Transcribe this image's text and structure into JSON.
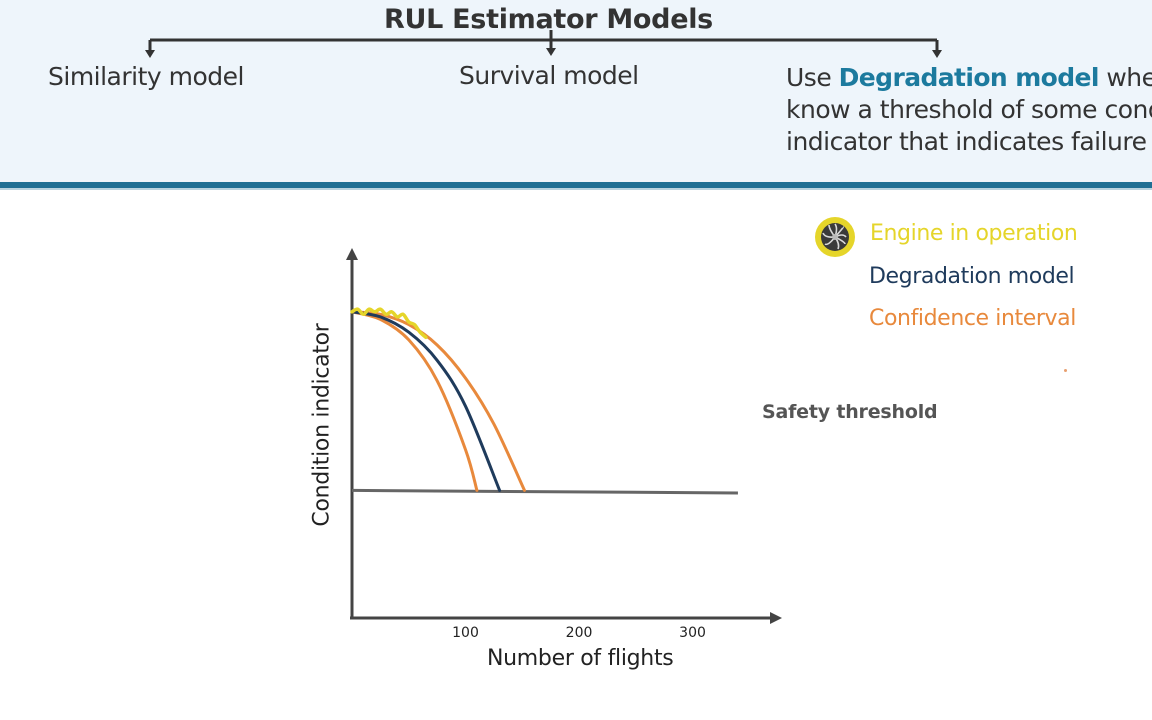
{
  "header": {
    "title": "RUL Estimator Models",
    "models": [
      {
        "label": "Similarity model"
      },
      {
        "label": "Survival model"
      }
    ],
    "degradation_description": {
      "prefix": "Use ",
      "highlight": "Degradation model",
      "suffix": " when you",
      "line2": "know a threshold of some condition",
      "line3": "indicator that indicates failure"
    }
  },
  "legend": {
    "items": [
      {
        "label": "Engine in operation",
        "color": "#e5d52a",
        "icon": "turbine-icon"
      },
      {
        "label": "Degradation model",
        "color": "#1f3b5c"
      },
      {
        "label": "Confidence interval",
        "color": "#e8893c"
      }
    ]
  },
  "colors": {
    "accent": "#1f6f94",
    "highlight": "#1c7a9e",
    "degradation": "#1f3b5c",
    "confidence": "#e8893c",
    "engine": "#e5d52a",
    "threshold": "#666666"
  },
  "chart_data": {
    "type": "line",
    "title": "",
    "xlabel": "Number of flights",
    "ylabel": "Condition indicator",
    "x_ticks": [
      {
        "value": 100,
        "label": "100"
      },
      {
        "value": 200,
        "label": "200"
      },
      {
        "value": 300,
        "label": "300"
      }
    ],
    "xlim": [
      0,
      370
    ],
    "ylim": [
      0,
      1.45
    ],
    "series": [
      {
        "name": "Engine in operation",
        "color": "#e5d52a",
        "x": [
          0,
          5,
          10,
          15,
          20,
          25,
          30,
          35,
          40,
          45,
          50,
          55,
          60,
          65
        ],
        "y": [
          1.2,
          1.21,
          1.19,
          1.21,
          1.2,
          1.21,
          1.19,
          1.2,
          1.18,
          1.19,
          1.16,
          1.15,
          1.12,
          1.1
        ]
      },
      {
        "name": "Degradation model",
        "color": "#1f3b5c",
        "x": [
          0,
          25,
          50,
          75,
          100,
          130
        ],
        "y": [
          1.2,
          1.18,
          1.12,
          1.01,
          0.83,
          0.5
        ]
      },
      {
        "name": "Confidence interval (lower)",
        "color": "#e8893c",
        "x": [
          0,
          25,
          50,
          75,
          100,
          110
        ],
        "y": [
          1.2,
          1.17,
          1.09,
          0.93,
          0.66,
          0.5
        ]
      },
      {
        "name": "Confidence interval (upper)",
        "color": "#e8893c",
        "x": [
          0,
          25,
          50,
          75,
          100,
          125,
          152
        ],
        "y": [
          1.2,
          1.19,
          1.15,
          1.07,
          0.94,
          0.76,
          0.5
        ]
      }
    ],
    "thresholds": [
      {
        "label": "Safety threshold",
        "x": [
          0,
          340
        ],
        "y": [
          0.5,
          0.49
        ],
        "color": "#666666"
      }
    ]
  }
}
